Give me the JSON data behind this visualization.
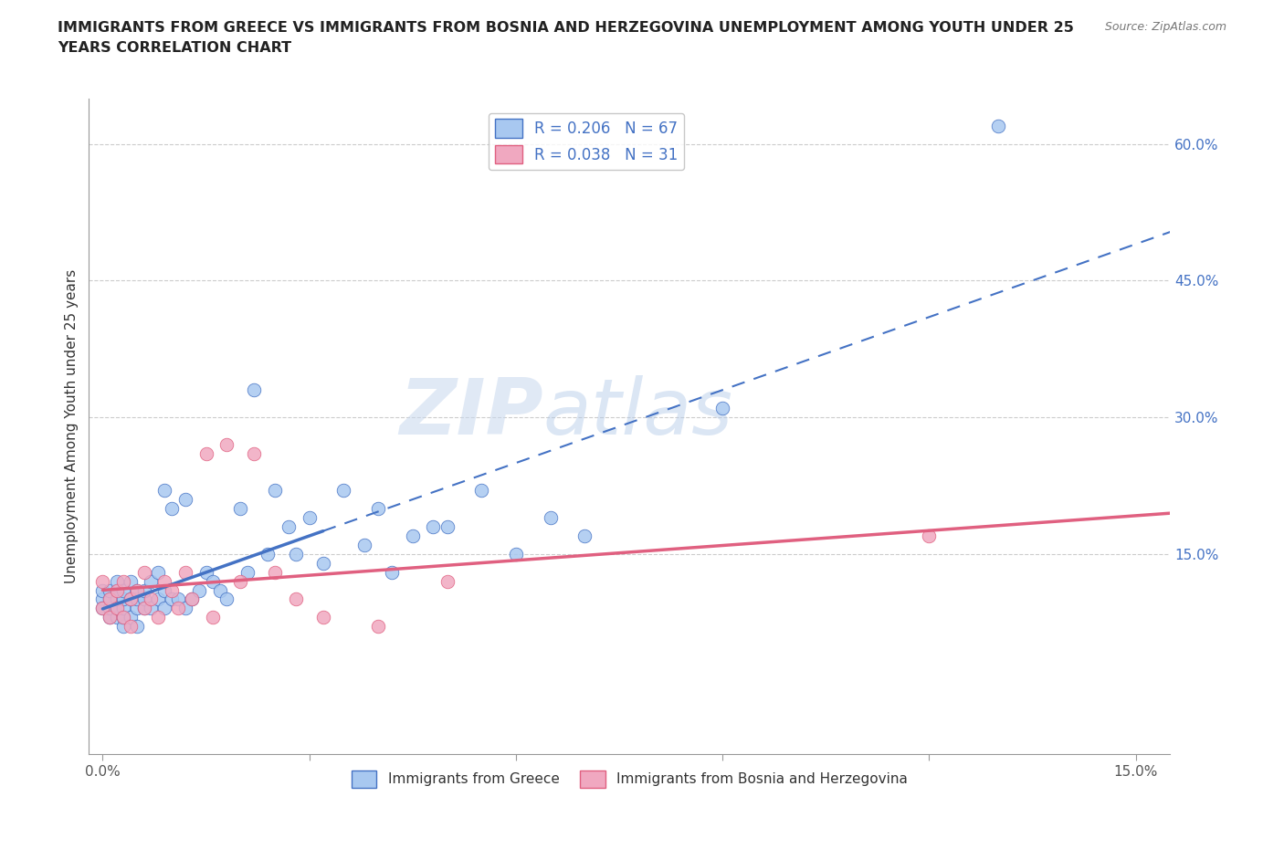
{
  "title_line1": "IMMIGRANTS FROM GREECE VS IMMIGRANTS FROM BOSNIA AND HERZEGOVINA UNEMPLOYMENT AMONG YOUTH UNDER 25",
  "title_line2": "YEARS CORRELATION CHART",
  "source_text": "Source: ZipAtlas.com",
  "ylabel": "Unemployment Among Youth under 25 years",
  "xlim": [
    -0.002,
    0.155
  ],
  "ylim": [
    -0.07,
    0.65
  ],
  "watermark_zip": "ZIP",
  "watermark_atlas": "atlas",
  "legend_r1": "R = 0.206   N = 67",
  "legend_r2": "R = 0.038   N = 31",
  "color_greece": "#a8c8f0",
  "color_bosnia": "#f0a8c0",
  "color_greece_line": "#4472c4",
  "color_bosnia_line": "#e06080",
  "color_blue_text": "#4472c4",
  "greece_x": [
    0.0,
    0.0,
    0.0,
    0.001,
    0.001,
    0.001,
    0.001,
    0.002,
    0.002,
    0.002,
    0.002,
    0.002,
    0.003,
    0.003,
    0.003,
    0.003,
    0.003,
    0.004,
    0.004,
    0.004,
    0.005,
    0.005,
    0.005,
    0.005,
    0.006,
    0.006,
    0.006,
    0.007,
    0.007,
    0.008,
    0.008,
    0.009,
    0.009,
    0.009,
    0.01,
    0.01,
    0.011,
    0.012,
    0.012,
    0.013,
    0.014,
    0.015,
    0.016,
    0.017,
    0.018,
    0.02,
    0.021,
    0.022,
    0.024,
    0.025,
    0.027,
    0.028,
    0.03,
    0.032,
    0.035,
    0.038,
    0.04,
    0.042,
    0.045,
    0.048,
    0.05,
    0.055,
    0.06,
    0.065,
    0.07,
    0.09,
    0.13
  ],
  "greece_y": [
    0.1,
    0.09,
    0.11,
    0.08,
    0.09,
    0.1,
    0.11,
    0.08,
    0.09,
    0.1,
    0.11,
    0.12,
    0.07,
    0.08,
    0.09,
    0.1,
    0.11,
    0.08,
    0.1,
    0.12,
    0.07,
    0.09,
    0.1,
    0.11,
    0.09,
    0.1,
    0.11,
    0.09,
    0.12,
    0.1,
    0.13,
    0.09,
    0.11,
    0.22,
    0.1,
    0.2,
    0.1,
    0.09,
    0.21,
    0.1,
    0.11,
    0.13,
    0.12,
    0.11,
    0.1,
    0.2,
    0.13,
    0.33,
    0.15,
    0.22,
    0.18,
    0.15,
    0.19,
    0.14,
    0.22,
    0.16,
    0.2,
    0.13,
    0.17,
    0.18,
    0.18,
    0.22,
    0.15,
    0.19,
    0.17,
    0.31,
    0.62
  ],
  "bosnia_x": [
    0.0,
    0.0,
    0.001,
    0.001,
    0.002,
    0.002,
    0.003,
    0.003,
    0.004,
    0.004,
    0.005,
    0.006,
    0.006,
    0.007,
    0.008,
    0.009,
    0.01,
    0.011,
    0.012,
    0.013,
    0.015,
    0.016,
    0.018,
    0.02,
    0.022,
    0.025,
    0.028,
    0.032,
    0.04,
    0.05,
    0.12
  ],
  "bosnia_y": [
    0.09,
    0.12,
    0.08,
    0.1,
    0.09,
    0.11,
    0.08,
    0.12,
    0.07,
    0.1,
    0.11,
    0.09,
    0.13,
    0.1,
    0.08,
    0.12,
    0.11,
    0.09,
    0.13,
    0.1,
    0.26,
    0.08,
    0.27,
    0.12,
    0.26,
    0.13,
    0.1,
    0.08,
    0.07,
    0.12,
    0.17
  ],
  "grid_color": "#cccccc",
  "bottom_legend_labels": [
    "Immigrants from Greece",
    "Immigrants from Bosnia and Herzegovina"
  ]
}
